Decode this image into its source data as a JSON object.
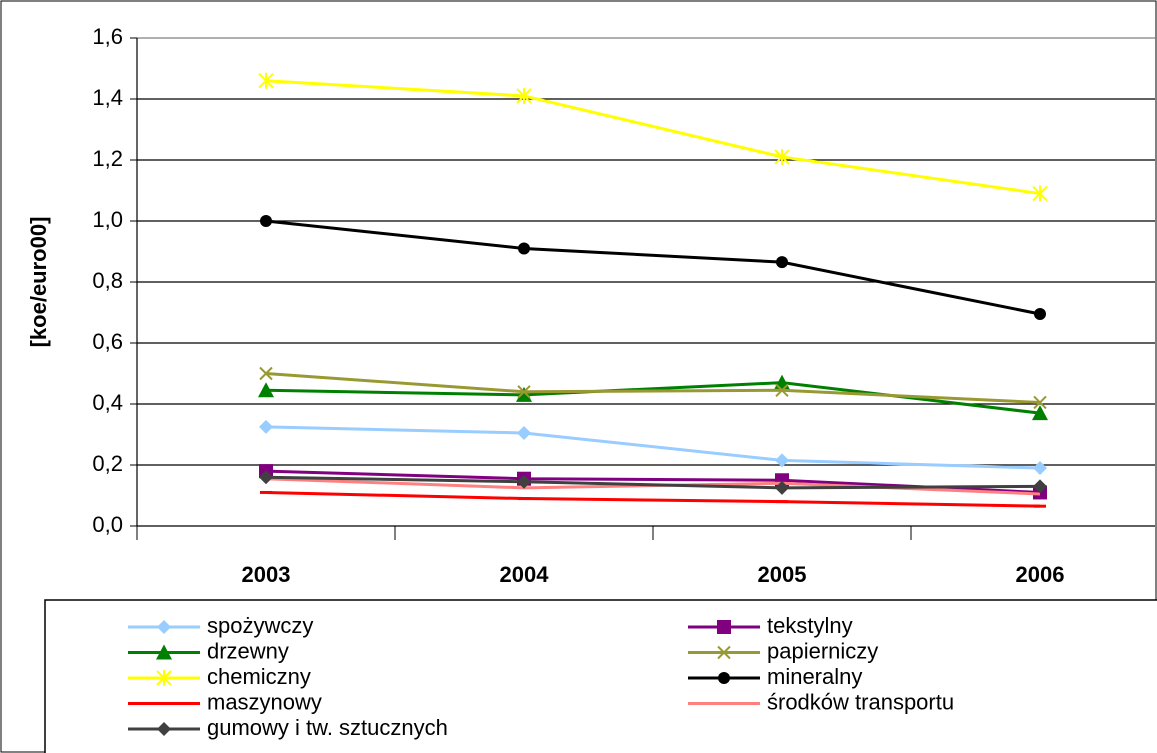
{
  "chart_data": {
    "type": "line",
    "y_label": "[koe/euro00]",
    "categories": [
      "2003",
      "2004",
      "2005",
      "2006"
    ],
    "ylim": [
      0,
      1.6
    ],
    "yticks": [
      {
        "value": 0,
        "label": "0,0"
      },
      {
        "value": 0.2,
        "label": "0,2"
      },
      {
        "value": 0.4,
        "label": "0,4"
      },
      {
        "value": 0.6,
        "label": "0,6"
      },
      {
        "value": 0.8,
        "label": "0,8"
      },
      {
        "value": 1.0,
        "label": "1,0"
      },
      {
        "value": 1.2,
        "label": "1,2"
      },
      {
        "value": 1.4,
        "label": "1,4"
      },
      {
        "value": 1.6,
        "label": "1,6"
      }
    ],
    "grid": true,
    "series": [
      {
        "name": "spożywczy",
        "color": "#99ccff",
        "marker": "diamond",
        "values": [
          0.325,
          0.305,
          0.215,
          0.19
        ]
      },
      {
        "name": "tekstylny",
        "color": "#800080",
        "marker": "square",
        "values": [
          0.18,
          0.155,
          0.15,
          0.11
        ]
      },
      {
        "name": "drzewny",
        "color": "#008000",
        "marker": "triangle",
        "values": [
          0.445,
          0.43,
          0.47,
          0.37
        ]
      },
      {
        "name": "papierniczy",
        "color": "#999933",
        "marker": "x",
        "values": [
          0.5,
          0.44,
          0.445,
          0.405
        ]
      },
      {
        "name": "chemiczny",
        "color": "#ffff00",
        "marker": "star",
        "values": [
          1.46,
          1.41,
          1.21,
          1.09
        ]
      },
      {
        "name": "mineralny",
        "color": "#000000",
        "marker": "circle",
        "values": [
          1.0,
          0.91,
          0.865,
          0.695
        ]
      },
      {
        "name": "maszynowy",
        "color": "#ff0000",
        "marker": "dash",
        "values": [
          0.11,
          0.09,
          0.08,
          0.065
        ]
      },
      {
        "name": "środków transportu",
        "color": "#ff8080",
        "marker": "none",
        "values": [
          0.155,
          0.125,
          0.14,
          0.105
        ]
      },
      {
        "name": "gumowy i tw. sztucznych",
        "color": "#404040",
        "marker": "diamond",
        "values": [
          0.16,
          0.145,
          0.125,
          0.13
        ]
      }
    ]
  }
}
